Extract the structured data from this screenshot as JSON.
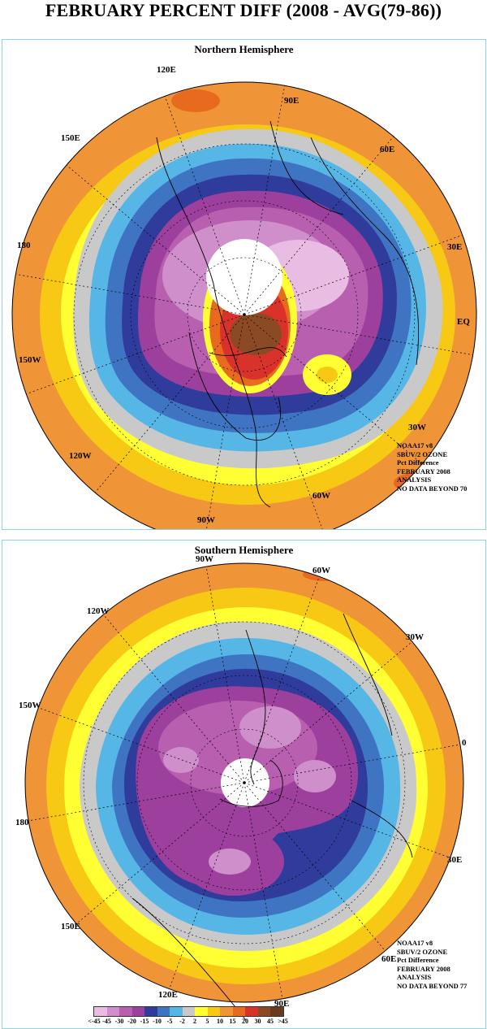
{
  "title": "FEBRUARY PERCENT DIFF (2008 - AVG(79-86))",
  "north": {
    "title": "Northern Hemisphere",
    "labels": [
      "90E",
      "60E",
      "30E",
      "EQ",
      "30W",
      "60W",
      "90W",
      "120W",
      "150W",
      "180",
      "150E",
      "120E"
    ],
    "info": [
      "NOAA17 v8",
      "SBUV/2 OZONE",
      "Pct Difference",
      "FEBRUARY 2008",
      "ANALYSIS",
      "NO DATA BEYOND  70"
    ]
  },
  "south": {
    "title": "Southern Hemisphere",
    "labels": [
      "90W",
      "60W",
      "30W",
      "0",
      "30E",
      "60E",
      "90E",
      "120E",
      "150E",
      "180",
      "150W",
      "120W"
    ],
    "info": [
      "NOAA17 v8",
      "SBUV/2 OZONE",
      "Pct Difference",
      "FEBRUARY 2008",
      "ANALYSIS",
      "NO DATA BEYOND  77"
    ]
  },
  "legend": {
    "ticks": [
      "<-45",
      "-45",
      "-30",
      "-20",
      "-15",
      "-10",
      "-5",
      "-2",
      "2",
      "5",
      "10",
      "15",
      "20",
      "30",
      "45",
      ">45"
    ],
    "colors": [
      "#e9bde3",
      "#cf8fcb",
      "#b85fb0",
      "#9d3f9d",
      "#2f3c9c",
      "#3f74c2",
      "#56b7e6",
      "#c9c9c9",
      "#ffff33",
      "#f7c814",
      "#f09438",
      "#e86a1f",
      "#d9322b",
      "#8c4a24",
      "#6b3a1d"
    ]
  },
  "palette": {
    "outer": "#f09438",
    "gold": "#f7c814",
    "yellow": "#ffff33",
    "grey": "#c9c9c9",
    "lightblue": "#56b7e6",
    "midblue": "#3f74c2",
    "darkblue": "#2f3c9c",
    "purple": "#9d3f9d",
    "magenta": "#b85fb0",
    "pink": "#cf8fcb",
    "lightpink": "#e9bde3",
    "red": "#d9322b",
    "brown": "#8c4a24",
    "orangered": "#e86a1f"
  }
}
